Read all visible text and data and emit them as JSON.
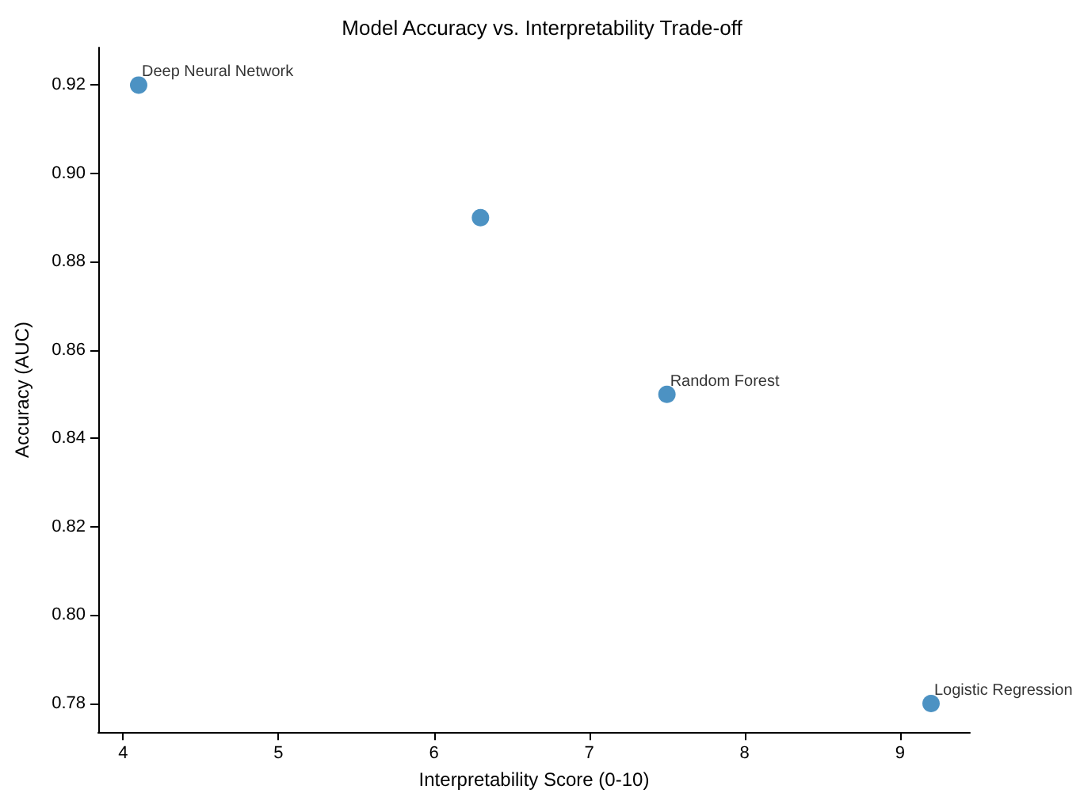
{
  "chart_data": {
    "type": "scatter",
    "title": "Model Accuracy vs. Interpretability Trade-off",
    "xlabel": "Interpretability Score (0-10)",
    "ylabel": "Accuracy (AUC)",
    "x": [
      4.1,
      6.3,
      7.5,
      9.2
    ],
    "series": [
      {
        "color": "#1f77b4",
        "values": [
          0.92,
          0.89,
          0.85,
          0.78
        ]
      }
    ],
    "annotations": [
      {
        "text": "Deep Neural Network",
        "x": 4.1,
        "y": 0.92
      },
      {
        "text": "Random Forest",
        "x": 7.5,
        "y": 0.85
      },
      {
        "text": "Logistic Regression",
        "x": 9.2,
        "y": 0.78
      }
    ],
    "xlim": [
      3.84,
      9.45
    ],
    "xticks": [
      4,
      5,
      6,
      7,
      8,
      9
    ],
    "ylim": [
      0.7735,
      0.9285
    ],
    "yticks": [
      0.78,
      {
        "value": 0.8,
        "label": "0.80"
      },
      0.82,
      0.84,
      0.86,
      0.88,
      {
        "value": 0.9,
        "label": "0.90"
      },
      0.92
    ],
    "grid": false,
    "marker": "circle"
  }
}
